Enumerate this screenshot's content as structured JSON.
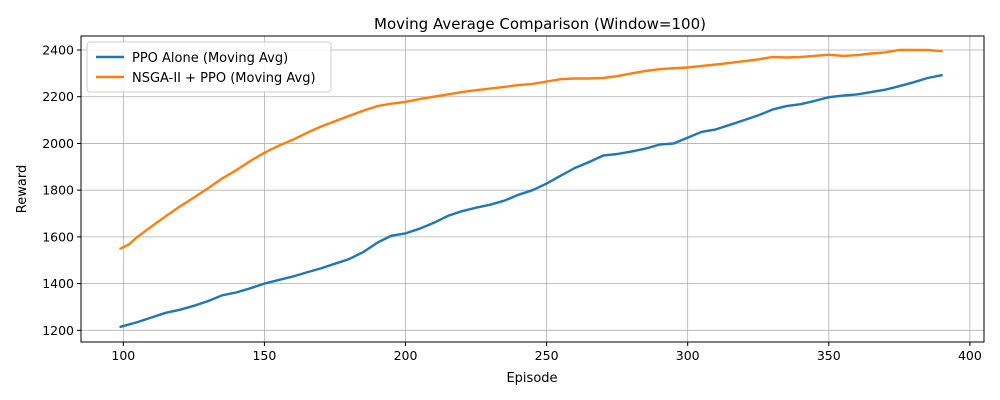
{
  "chart_data": {
    "type": "line",
    "title": "Moving Average Comparison (Window=100)",
    "xlabel": "Episode",
    "ylabel": "Reward",
    "xlim": [
      85,
      405
    ],
    "ylim": [
      1150,
      2460
    ],
    "xticks": [
      100,
      150,
      200,
      250,
      300,
      350,
      400
    ],
    "yticks": [
      1200,
      1400,
      1600,
      1800,
      2000,
      2200,
      2400
    ],
    "grid": true,
    "legend_position": "top-left",
    "series": [
      {
        "name": "PPO Alone (Moving Avg)",
        "color": "#1f77b4",
        "points": [
          [
            99,
            1215
          ],
          [
            105,
            1235
          ],
          [
            110,
            1255
          ],
          [
            115,
            1275
          ],
          [
            120,
            1288
          ],
          [
            125,
            1305
          ],
          [
            130,
            1325
          ],
          [
            135,
            1350
          ],
          [
            140,
            1362
          ],
          [
            145,
            1380
          ],
          [
            150,
            1400
          ],
          [
            155,
            1415
          ],
          [
            160,
            1430
          ],
          [
            165,
            1448
          ],
          [
            170,
            1465
          ],
          [
            175,
            1485
          ],
          [
            180,
            1505
          ],
          [
            185,
            1535
          ],
          [
            190,
            1575
          ],
          [
            195,
            1605
          ],
          [
            200,
            1615
          ],
          [
            205,
            1635
          ],
          [
            210,
            1660
          ],
          [
            215,
            1690
          ],
          [
            220,
            1710
          ],
          [
            225,
            1725
          ],
          [
            230,
            1738
          ],
          [
            235,
            1755
          ],
          [
            240,
            1780
          ],
          [
            245,
            1800
          ],
          [
            250,
            1828
          ],
          [
            255,
            1862
          ],
          [
            260,
            1895
          ],
          [
            265,
            1920
          ],
          [
            270,
            1948
          ],
          [
            275,
            1955
          ],
          [
            280,
            1965
          ],
          [
            285,
            1978
          ],
          [
            290,
            1995
          ],
          [
            295,
            2000
          ],
          [
            300,
            2025
          ],
          [
            305,
            2050
          ],
          [
            310,
            2060
          ],
          [
            315,
            2080
          ],
          [
            320,
            2100
          ],
          [
            325,
            2120
          ],
          [
            330,
            2145
          ],
          [
            335,
            2160
          ],
          [
            340,
            2168
          ],
          [
            345,
            2182
          ],
          [
            350,
            2198
          ],
          [
            355,
            2205
          ],
          [
            360,
            2210
          ],
          [
            365,
            2220
          ],
          [
            370,
            2230
          ],
          [
            375,
            2245
          ],
          [
            380,
            2262
          ],
          [
            385,
            2280
          ],
          [
            390,
            2292
          ]
        ]
      },
      {
        "name": "NSGA-II + PPO (Moving Avg)",
        "color": "#ff7f0e",
        "points": [
          [
            99,
            1550
          ],
          [
            102,
            1568
          ],
          [
            105,
            1600
          ],
          [
            110,
            1645
          ],
          [
            115,
            1688
          ],
          [
            120,
            1730
          ],
          [
            125,
            1768
          ],
          [
            130,
            1808
          ],
          [
            135,
            1850
          ],
          [
            140,
            1885
          ],
          [
            145,
            1925
          ],
          [
            150,
            1960
          ],
          [
            155,
            1990
          ],
          [
            160,
            2015
          ],
          [
            165,
            2045
          ],
          [
            170,
            2072
          ],
          [
            175,
            2095
          ],
          [
            180,
            2118
          ],
          [
            185,
            2140
          ],
          [
            190,
            2160
          ],
          [
            195,
            2170
          ],
          [
            200,
            2178
          ],
          [
            205,
            2190
          ],
          [
            210,
            2200
          ],
          [
            215,
            2210
          ],
          [
            220,
            2220
          ],
          [
            225,
            2228
          ],
          [
            230,
            2235
          ],
          [
            235,
            2242
          ],
          [
            240,
            2250
          ],
          [
            245,
            2255
          ],
          [
            250,
            2265
          ],
          [
            255,
            2275
          ],
          [
            260,
            2278
          ],
          [
            265,
            2278
          ],
          [
            270,
            2280
          ],
          [
            275,
            2288
          ],
          [
            280,
            2300
          ],
          [
            285,
            2310
          ],
          [
            290,
            2318
          ],
          [
            295,
            2322
          ],
          [
            300,
            2325
          ],
          [
            305,
            2332
          ],
          [
            310,
            2338
          ],
          [
            315,
            2345
          ],
          [
            320,
            2352
          ],
          [
            325,
            2360
          ],
          [
            330,
            2370
          ],
          [
            335,
            2368
          ],
          [
            340,
            2370
          ],
          [
            345,
            2375
          ],
          [
            350,
            2380
          ],
          [
            355,
            2375
          ],
          [
            360,
            2378
          ],
          [
            365,
            2385
          ],
          [
            370,
            2390
          ],
          [
            375,
            2400
          ],
          [
            380,
            2400
          ],
          [
            385,
            2400
          ],
          [
            390,
            2395
          ]
        ]
      }
    ]
  }
}
